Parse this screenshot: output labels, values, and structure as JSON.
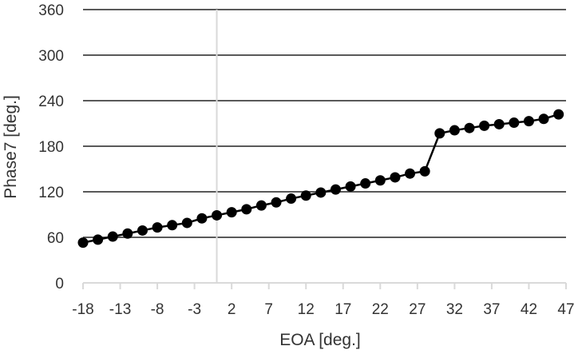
{
  "chart_data": {
    "type": "line",
    "xlabel": "EOA [deg.]",
    "ylabel": "Phase7 [deg.]",
    "x_ticks": [
      -18,
      -13,
      -8,
      -3,
      2,
      7,
      12,
      17,
      22,
      27,
      32,
      37,
      42,
      47
    ],
    "y_ticks": [
      0,
      60,
      120,
      180,
      240,
      300,
      360
    ],
    "xlim": [
      -18,
      47
    ],
    "ylim": [
      0,
      360
    ],
    "grid": "horizontal",
    "marker": "circle",
    "colors": {
      "line": "#000000",
      "grid": "#595959",
      "axis": "#d9d9d9",
      "text": "#333333"
    },
    "series": [
      {
        "x": [
          -18,
          -16,
          -14,
          -12,
          -10,
          -8,
          -6,
          -4,
          -2,
          0,
          2,
          4,
          6,
          8,
          10,
          12,
          14,
          16,
          18,
          20,
          22,
          24,
          26,
          28,
          30,
          32,
          34,
          36,
          38,
          40,
          42,
          44,
          46
        ],
        "y": [
          53,
          57,
          61,
          65,
          69,
          73,
          76,
          79,
          85,
          89,
          93,
          97,
          102,
          106,
          111,
          115,
          119,
          123,
          127,
          131,
          135,
          139,
          144,
          147,
          197,
          201,
          204,
          207,
          209,
          211,
          213,
          216,
          222
        ]
      }
    ]
  }
}
